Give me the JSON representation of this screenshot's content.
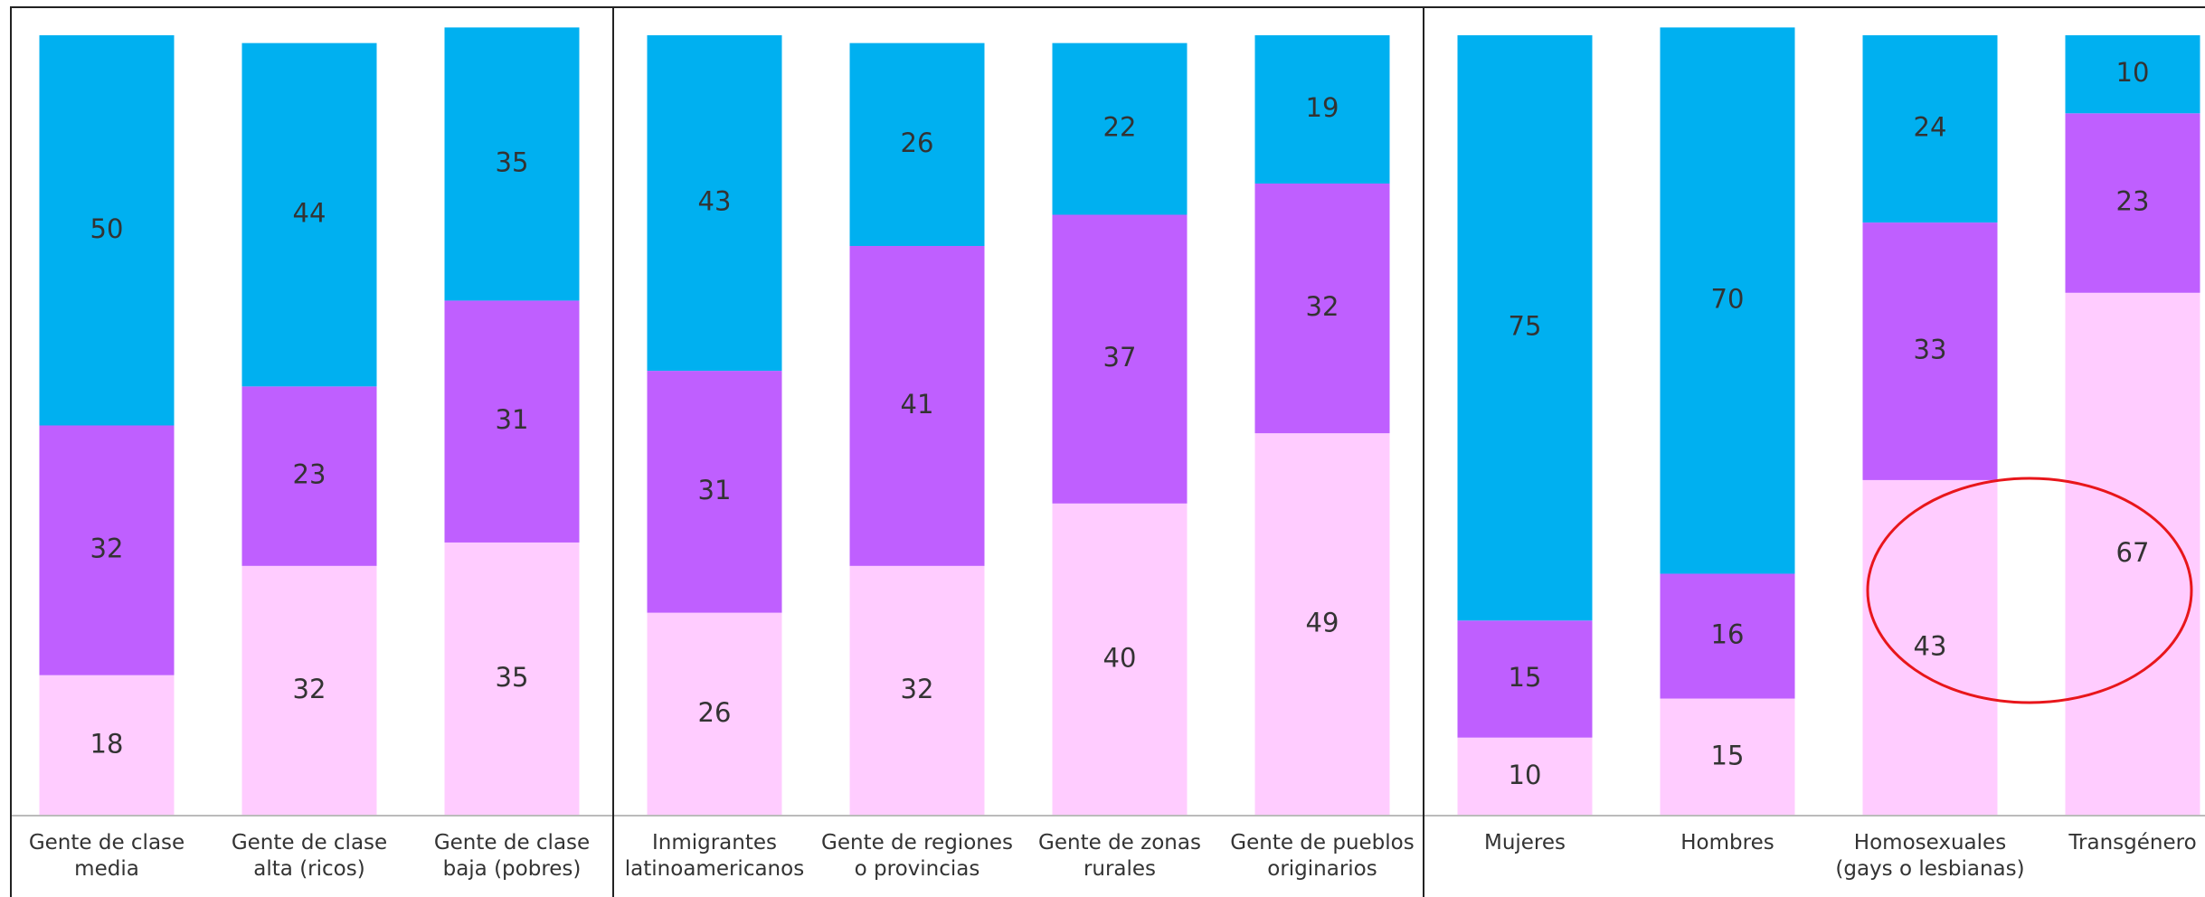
{
  "chart_data": [
    {
      "type": "bar",
      "stacked": true,
      "ylim": [
        0,
        100
      ],
      "categories": [
        "Gente de clase\nmedia",
        "Gente de clase\nalta (ricos)",
        "Gente de clase\nbaja (pobres)"
      ],
      "series": [
        {
          "color": "#ffccff",
          "values": [
            18,
            32,
            35
          ]
        },
        {
          "color": "#bf5fff",
          "values": [
            32,
            23,
            31
          ]
        },
        {
          "color": "#00b0f0",
          "values": [
            50,
            44,
            35
          ]
        }
      ]
    },
    {
      "type": "bar",
      "stacked": true,
      "ylim": [
        0,
        100
      ],
      "categories": [
        "Inmigrantes\nlatinoamericanos",
        "Gente de regiones\no provincias",
        "Gente de zonas\nrurales",
        "Gente de pueblos\noriginarios"
      ],
      "series": [
        {
          "color": "#ffccff",
          "values": [
            26,
            32,
            40,
            49
          ]
        },
        {
          "color": "#bf5fff",
          "values": [
            31,
            41,
            37,
            32
          ]
        },
        {
          "color": "#00b0f0",
          "values": [
            43,
            26,
            22,
            19
          ]
        }
      ]
    },
    {
      "type": "bar",
      "stacked": true,
      "ylim": [
        0,
        100
      ],
      "categories": [
        "Mujeres",
        "Hombres",
        "Homosexuales\n(gays o lesbianas)",
        "Transgénero"
      ],
      "series": [
        {
          "color": "#ffccff",
          "values": [
            10,
            15,
            43,
            67
          ]
        },
        {
          "color": "#bf5fff",
          "values": [
            15,
            16,
            33,
            23
          ]
        },
        {
          "color": "#00b0f0",
          "values": [
            75,
            70,
            24,
            10
          ]
        }
      ]
    }
  ]
}
